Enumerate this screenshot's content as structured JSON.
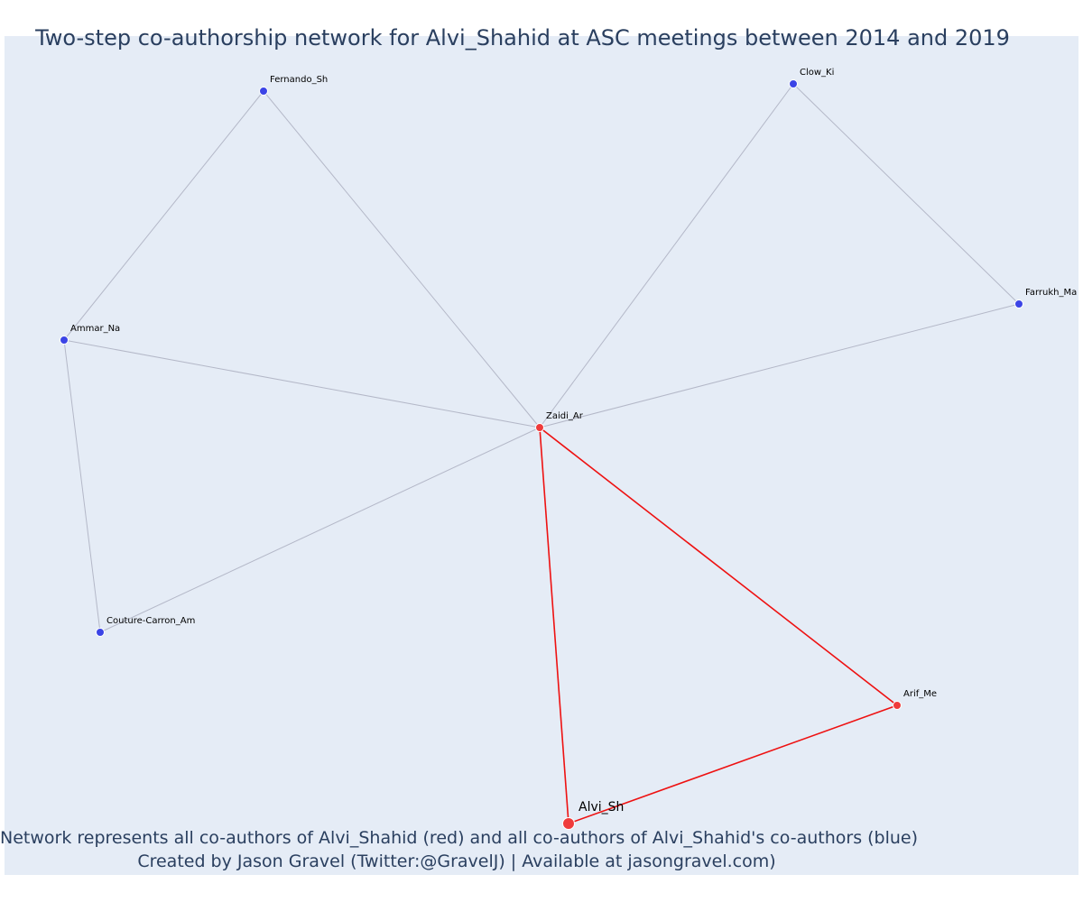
{
  "title": "Two-step co-authorship network for Alvi_Shahid at ASC meetings between 2014 and 2019",
  "captions": {
    "line1": "Network represents all co-authors of Alvi_Shahid (red) and all co-authors of Alvi_Shahid's co-authors (blue)",
    "line2": "Created by Jason Gravel (Twitter:@GravelJ) | Available at jasongravel.com)"
  },
  "colors": {
    "plot_background": "#e5ecf6",
    "text": "#2a3f5f",
    "coauthor_red": "#ef3b3b",
    "second_step_blue": "#3b44e6",
    "edge_gray": "#b4b8c8",
    "edge_red": "#ee1111"
  },
  "chart_data": {
    "type": "network",
    "nodes": [
      {
        "id": "Alvi_Sh",
        "group": "focal"
      },
      {
        "id": "Zaidi_Ar",
        "group": "coauthor"
      },
      {
        "id": "Arif_Me",
        "group": "coauthor"
      },
      {
        "id": "Fernando_Sh",
        "group": "second-step"
      },
      {
        "id": "Clow_Ki",
        "group": "second-step"
      },
      {
        "id": "Ammar_Na",
        "group": "second-step"
      },
      {
        "id": "Farrukh_Ma",
        "group": "second-step"
      },
      {
        "id": "Couture-Carron_Am",
        "group": "second-step"
      }
    ],
    "edges": [
      {
        "source": "Fernando_Sh",
        "target": "Ammar_Na",
        "kind": "second-step"
      },
      {
        "source": "Fernando_Sh",
        "target": "Zaidi_Ar",
        "kind": "second-step"
      },
      {
        "source": "Clow_Ki",
        "target": "Zaidi_Ar",
        "kind": "second-step"
      },
      {
        "source": "Clow_Ki",
        "target": "Farrukh_Ma",
        "kind": "second-step"
      },
      {
        "source": "Ammar_Na",
        "target": "Zaidi_Ar",
        "kind": "second-step"
      },
      {
        "source": "Ammar_Na",
        "target": "Couture-Carron_Am",
        "kind": "second-step"
      },
      {
        "source": "Couture-Carron_Am",
        "target": "Zaidi_Ar",
        "kind": "second-step"
      },
      {
        "source": "Farrukh_Ma",
        "target": "Zaidi_Ar",
        "kind": "second-step"
      },
      {
        "source": "Zaidi_Ar",
        "target": "Alvi_Sh",
        "kind": "coauthor"
      },
      {
        "source": "Zaidi_Ar",
        "target": "Arif_Me",
        "kind": "coauthor"
      },
      {
        "source": "Arif_Me",
        "target": "Alvi_Sh",
        "kind": "coauthor"
      }
    ]
  }
}
